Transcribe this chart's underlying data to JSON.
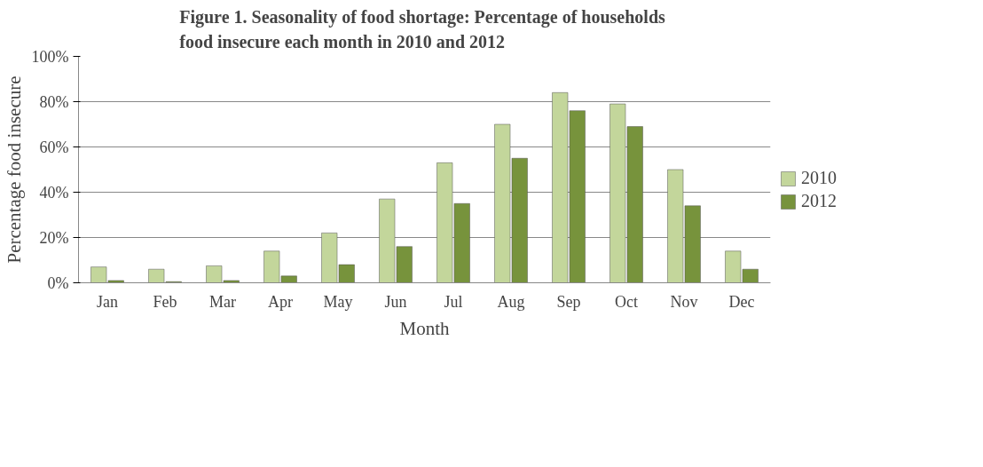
{
  "chart_data": {
    "type": "bar",
    "title": "Figure 1. Seasonality of food shortage:  Percentage of households\nfood insecure each month in 2010 and 2012",
    "xlabel": "Month",
    "ylabel": "Percentage food insecure",
    "categories": [
      "Jan",
      "Feb",
      "Mar",
      "Apr",
      "May",
      "Jun",
      "Jul",
      "Aug",
      "Sep",
      "Oct",
      "Nov",
      "Dec"
    ],
    "series": [
      {
        "name": "2010",
        "color": "#c3d69b",
        "values": [
          7,
          6,
          7.5,
          14,
          22,
          37,
          53,
          70,
          84,
          79,
          50,
          14
        ]
      },
      {
        "name": "2012",
        "color": "#77933c",
        "values": [
          1,
          0.5,
          1,
          3,
          8,
          16,
          35,
          55,
          76,
          69,
          34,
          6
        ]
      }
    ],
    "ylim": [
      0,
      100
    ],
    "yticks": [
      {
        "value": 0,
        "label": "0%"
      },
      {
        "value": 20,
        "label": "20%"
      },
      {
        "value": 40,
        "label": "40%"
      },
      {
        "value": 60,
        "label": "60%"
      },
      {
        "value": 80,
        "label": "80%"
      },
      {
        "value": 100,
        "label": "100%"
      }
    ],
    "grid": "y",
    "legend": "right"
  }
}
